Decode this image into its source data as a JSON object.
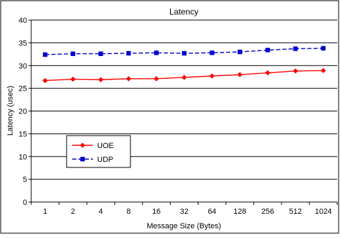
{
  "chart_data": {
    "type": "line",
    "title": "Latency",
    "xlabel": "Message Size (Bytes)",
    "ylabel": "Latency (usec)",
    "categories": [
      "1",
      "2",
      "4",
      "8",
      "16",
      "32",
      "64",
      "128",
      "256",
      "512",
      "1024"
    ],
    "ylim": [
      0,
      40
    ],
    "yticks": [
      0,
      5,
      10,
      15,
      20,
      25,
      30,
      35,
      40
    ],
    "grid": "horizontal",
    "legend_position": "lower-left",
    "series": [
      {
        "name": "UOE",
        "color": "#ff0000",
        "marker": "diamond",
        "line_style": "solid",
        "values": [
          26.7,
          27.0,
          26.9,
          27.1,
          27.1,
          27.4,
          27.7,
          28.0,
          28.4,
          28.8,
          28.9
        ]
      },
      {
        "name": "UDP",
        "color": "#0000cc",
        "marker": "square",
        "line_style": "dashed",
        "values": [
          32.4,
          32.6,
          32.6,
          32.7,
          32.8,
          32.7,
          32.8,
          33.0,
          33.4,
          33.7,
          33.8
        ]
      }
    ]
  }
}
